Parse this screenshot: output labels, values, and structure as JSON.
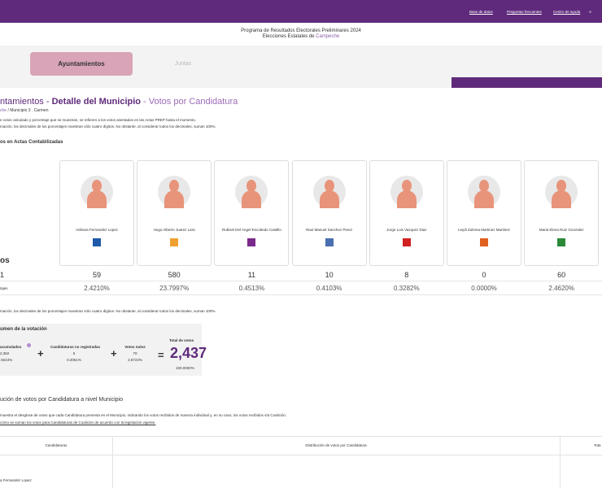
{
  "topbar": {
    "links": [
      "Base de datos",
      "Preguntas frecuentes",
      "Centro de ayuda",
      "A"
    ]
  },
  "header": {
    "line1": "Programa de Resultados Electorales Preliminares 2024",
    "line2": "Elecciones Estatales de",
    "state": "Campeche"
  },
  "tabs": [
    "Ayuntamientos",
    "Juntas"
  ],
  "title": {
    "part1": "ntamientos -",
    "part2": "Detalle del Municipio",
    "part3": "- Votos por Candidatura"
  },
  "breadcrumb": {
    "link": "che",
    "current": "/ Municipio 3 . Carmen"
  },
  "notes": [
    "e votos calculado y porcentaje que se muestran, se refieren a los votos asentados en las Actas PREP hasta el momento.",
    "mación, los decimales de los porcentajes muestran sólo cuatro dígitos. No obstante, al considerar todos los decimales, suman 100%."
  ],
  "section_title": "os en Actas Contabilizadas",
  "row_labels": {
    "heading": "os",
    "votes": "1",
    "percent": "tajes"
  },
  "candidates": [
    {
      "name": "Adriana Fernandez Lopez",
      "votes": "59",
      "percent": "2.4210%"
    },
    {
      "name": "Hugo Alberto Juarez Lara",
      "votes": "580",
      "percent": "23.7997%"
    },
    {
      "name": "Rubisel Del Angel Escobedo Castillo",
      "votes": "11",
      "percent": "0.4513%"
    },
    {
      "name": "Raul Manuel Sanchez Perez",
      "votes": "10",
      "percent": "0.4103%"
    },
    {
      "name": "Jorge Luis Vazquez Diaz",
      "votes": "8",
      "percent": "0.3282%"
    },
    {
      "name": "Leydi Zulema Martinez Martinez",
      "votes": "0",
      "percent": "0.0000%"
    },
    {
      "name": "Maria Elena Ruiz Gonzalez",
      "votes": "60",
      "percent": "2.4620%"
    }
  ],
  "note_after": "mación, los decimales de los porcentajes muestran sólo cuatro dígitos. No obstante, al considerar todos los decimales, suman 100%.",
  "summary": {
    "title": "umen de la votación",
    "accumulated": {
      "label": "acumulados",
      "value": "2,362",
      "percent": ".9224%"
    },
    "unregistered": {
      "label": "Candidaturas no registradas",
      "value": "5",
      "percent": "0.2051%"
    },
    "null_votes": {
      "label": "Votos nulos",
      "value": "70",
      "percent": "2.8723%"
    },
    "total": {
      "label": "Total de votos",
      "value": "2,437",
      "percent": "100.0000%"
    }
  },
  "distribution": {
    "title": "ución de votos por Candidatura a nivel Municipio",
    "text": "muestra el desglose de votos que cada Candidatura presenta en el Municipio, indicando los votos recibidos de manera individual y, en su caso, los votos recibidos vía Coalición.",
    "link": "cómo se suman los votos para Candidaturas de Coalición de acuerdo con la legislación vigente.",
    "headers": [
      "Candidaturas",
      "Distribución de votos por Candidatura",
      "Tota"
    ],
    "first_row": "a Fernandez Lopez"
  }
}
